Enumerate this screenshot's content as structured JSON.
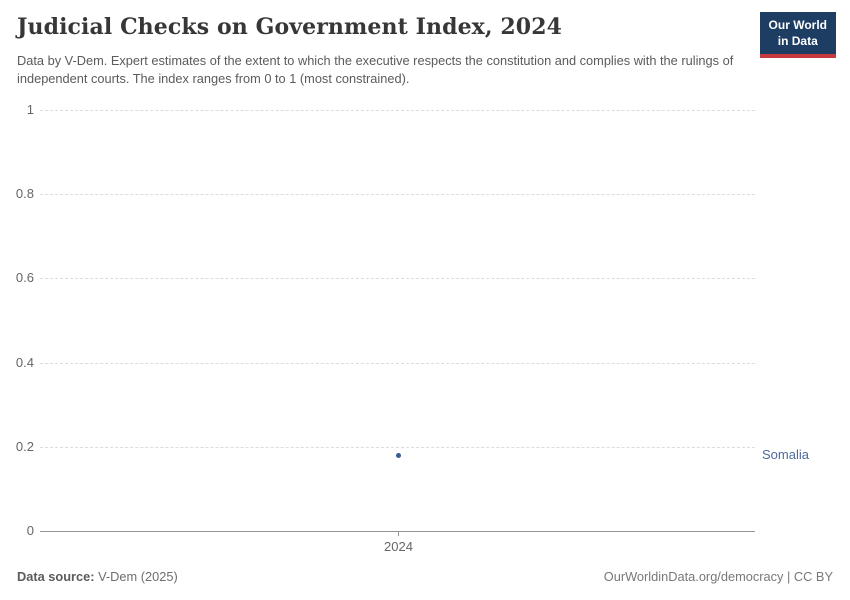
{
  "header": {
    "title": "Judicial Checks on Government Index, 2024",
    "subtitle": "Data by V-Dem. Expert estimates of the extent to which the executive respects the constitution and complies with the rulings of independent courts. The index ranges from 0 to 1 (most constrained).",
    "logo": {
      "line1": "Our World",
      "line2": "in Data"
    }
  },
  "chart_data": {
    "type": "scatter",
    "title": "Judicial Checks on Government Index, 2024",
    "x": [
      2024
    ],
    "categories": [
      "2024"
    ],
    "series": [
      {
        "name": "Somalia",
        "values": [
          0.18
        ]
      }
    ],
    "xlabel": "",
    "ylabel": "",
    "ylim": [
      0,
      1
    ],
    "yticks": [
      0,
      0.2,
      0.4,
      0.6,
      0.8,
      1
    ],
    "xticks": [
      "2024"
    ],
    "grid": true,
    "gridline_style": "dashed",
    "legend_position": "right-of-point",
    "point_color": "#3d5c8e",
    "entity_label_color": "#4c6a9c"
  },
  "footer": {
    "source_label": "Data source:",
    "source_value": " V-Dem (2025)",
    "right_text": "OurWorldinData.org/democracy | CC BY"
  }
}
